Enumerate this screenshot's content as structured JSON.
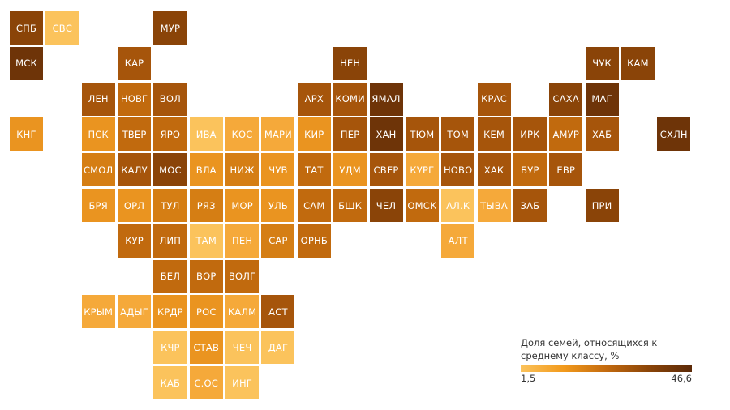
{
  "palette": {
    "1": "#FBC35C",
    "2": "#F5A93A",
    "3": "#EA9420",
    "4": "#D57E14",
    "5": "#C16A0E",
    "6": "#A6550B",
    "7": "#8A4408",
    "8": "#6E3408"
  },
  "legend": {
    "title": "Доля семей, относящихся к среднему классу, %",
    "min_label": "1,5",
    "max_label": "46,6"
  },
  "regions": [
    {
      "label": "СПБ",
      "col": 0,
      "row": 0,
      "tone": 7
    },
    {
      "label": "СВС",
      "col": 1,
      "row": 0,
      "tone": 1
    },
    {
      "label": "МУР",
      "col": 4,
      "row": 0,
      "tone": 7
    },
    {
      "label": "МСК",
      "col": 0,
      "row": 1,
      "tone": 8
    },
    {
      "label": "КАР",
      "col": 3,
      "row": 1,
      "tone": 6
    },
    {
      "label": "НЕН",
      "col": 9,
      "row": 1,
      "tone": 7
    },
    {
      "label": "ЧУК",
      "col": 16,
      "row": 1,
      "tone": 7
    },
    {
      "label": "КАМ",
      "col": 17,
      "row": 1,
      "tone": 7
    },
    {
      "label": "ЛЕН",
      "col": 2,
      "row": 2,
      "tone": 6
    },
    {
      "label": "НОВГ",
      "col": 3,
      "row": 2,
      "tone": 5
    },
    {
      "label": "ВОЛ",
      "col": 4,
      "row": 2,
      "tone": 6
    },
    {
      "label": "АРХ",
      "col": 8,
      "row": 2,
      "tone": 6
    },
    {
      "label": "КОМИ",
      "col": 9,
      "row": 2,
      "tone": 6
    },
    {
      "label": "ЯМАЛ",
      "col": 10,
      "row": 2,
      "tone": 8
    },
    {
      "label": "КРАС",
      "col": 13,
      "row": 2,
      "tone": 6
    },
    {
      "label": "САХА",
      "col": 15,
      "row": 2,
      "tone": 7
    },
    {
      "label": "МАГ",
      "col": 16,
      "row": 2,
      "tone": 8
    },
    {
      "label": "КНГ",
      "col": 0,
      "row": 3,
      "tone": 3
    },
    {
      "label": "ПСК",
      "col": 2,
      "row": 3,
      "tone": 3
    },
    {
      "label": "ТВЕР",
      "col": 3,
      "row": 3,
      "tone": 5
    },
    {
      "label": "ЯРО",
      "col": 4,
      "row": 3,
      "tone": 5
    },
    {
      "label": "ИВА",
      "col": 5,
      "row": 3,
      "tone": 1
    },
    {
      "label": "КОС",
      "col": 6,
      "row": 3,
      "tone": 2
    },
    {
      "label": "МАРИ",
      "col": 7,
      "row": 3,
      "tone": 2
    },
    {
      "label": "КИР",
      "col": 8,
      "row": 3,
      "tone": 3
    },
    {
      "label": "ПЕР",
      "col": 9,
      "row": 3,
      "tone": 6
    },
    {
      "label": "ХАН",
      "col": 10,
      "row": 3,
      "tone": 8
    },
    {
      "label": "ТЮМ",
      "col": 11,
      "row": 3,
      "tone": 6
    },
    {
      "label": "ТОМ",
      "col": 12,
      "row": 3,
      "tone": 6
    },
    {
      "label": "КЕМ",
      "col": 13,
      "row": 3,
      "tone": 6
    },
    {
      "label": "ИРК",
      "col": 14,
      "row": 3,
      "tone": 6
    },
    {
      "label": "АМУР",
      "col": 15,
      "row": 3,
      "tone": 5
    },
    {
      "label": "ХАБ",
      "col": 16,
      "row": 3,
      "tone": 6
    },
    {
      "label": "СХЛН",
      "col": 18,
      "row": 3,
      "tone": 8
    },
    {
      "label": "СМОЛ",
      "col": 2,
      "row": 4,
      "tone": 4
    },
    {
      "label": "КАЛУ",
      "col": 3,
      "row": 4,
      "tone": 6
    },
    {
      "label": "МОС",
      "col": 4,
      "row": 4,
      "tone": 7
    },
    {
      "label": "ВЛА",
      "col": 5,
      "row": 4,
      "tone": 3
    },
    {
      "label": "НИЖ",
      "col": 6,
      "row": 4,
      "tone": 4
    },
    {
      "label": "ЧУВ",
      "col": 7,
      "row": 4,
      "tone": 3
    },
    {
      "label": "ТАТ",
      "col": 8,
      "row": 4,
      "tone": 5
    },
    {
      "label": "УДМ",
      "col": 9,
      "row": 4,
      "tone": 3
    },
    {
      "label": "СВЕР",
      "col": 10,
      "row": 4,
      "tone": 6
    },
    {
      "label": "КУРГ",
      "col": 11,
      "row": 4,
      "tone": 2
    },
    {
      "label": "НОВО",
      "col": 12,
      "row": 4,
      "tone": 6
    },
    {
      "label": "ХАК",
      "col": 13,
      "row": 4,
      "tone": 6
    },
    {
      "label": "БУР",
      "col": 14,
      "row": 4,
      "tone": 5
    },
    {
      "label": "ЕВР",
      "col": 15,
      "row": 4,
      "tone": 6
    },
    {
      "label": "БРЯ",
      "col": 2,
      "row": 5,
      "tone": 3
    },
    {
      "label": "ОРЛ",
      "col": 3,
      "row": 5,
      "tone": 3
    },
    {
      "label": "ТУЛ",
      "col": 4,
      "row": 5,
      "tone": 4
    },
    {
      "label": "РЯЗ",
      "col": 5,
      "row": 5,
      "tone": 4
    },
    {
      "label": "МОР",
      "col": 6,
      "row": 5,
      "tone": 3
    },
    {
      "label": "УЛЬ",
      "col": 7,
      "row": 5,
      "tone": 3
    },
    {
      "label": "САМ",
      "col": 8,
      "row": 5,
      "tone": 5
    },
    {
      "label": "БШК",
      "col": 9,
      "row": 5,
      "tone": 5
    },
    {
      "label": "ЧЕЛ",
      "col": 10,
      "row": 5,
      "tone": 7
    },
    {
      "label": "ОМСК",
      "col": 11,
      "row": 5,
      "tone": 5
    },
    {
      "label": "АЛ.К",
      "col": 12,
      "row": 5,
      "tone": 1
    },
    {
      "label": "ТЫВА",
      "col": 13,
      "row": 5,
      "tone": 2
    },
    {
      "label": "ЗАБ",
      "col": 14,
      "row": 5,
      "tone": 6
    },
    {
      "label": "ПРИ",
      "col": 16,
      "row": 5,
      "tone": 7
    },
    {
      "label": "КУР",
      "col": 3,
      "row": 6,
      "tone": 5
    },
    {
      "label": "ЛИП",
      "col": 4,
      "row": 6,
      "tone": 5
    },
    {
      "label": "ТАМ",
      "col": 5,
      "row": 6,
      "tone": 1
    },
    {
      "label": "ПЕН",
      "col": 6,
      "row": 6,
      "tone": 2
    },
    {
      "label": "САР",
      "col": 7,
      "row": 6,
      "tone": 4
    },
    {
      "label": "ОРНБ",
      "col": 8,
      "row": 6,
      "tone": 5
    },
    {
      "label": "АЛТ",
      "col": 12,
      "row": 6,
      "tone": 2
    },
    {
      "label": "БЕЛ",
      "col": 4,
      "row": 7,
      "tone": 5
    },
    {
      "label": "ВОР",
      "col": 5,
      "row": 7,
      "tone": 5
    },
    {
      "label": "ВОЛГ",
      "col": 6,
      "row": 7,
      "tone": 5
    },
    {
      "label": "КРЫМ",
      "col": 2,
      "row": 8,
      "tone": 2
    },
    {
      "label": "АДЫГ",
      "col": 3,
      "row": 8,
      "tone": 2
    },
    {
      "label": "КРДР",
      "col": 4,
      "row": 8,
      "tone": 3
    },
    {
      "label": "РОС",
      "col": 5,
      "row": 8,
      "tone": 3
    },
    {
      "label": "КАЛМ",
      "col": 6,
      "row": 8,
      "tone": 2
    },
    {
      "label": "АСТ",
      "col": 7,
      "row": 8,
      "tone": 6
    },
    {
      "label": "КЧР",
      "col": 4,
      "row": 9,
      "tone": 1
    },
    {
      "label": "СТАВ",
      "col": 5,
      "row": 9,
      "tone": 3
    },
    {
      "label": "ЧЕЧ",
      "col": 6,
      "row": 9,
      "tone": 1
    },
    {
      "label": "ДАГ",
      "col": 7,
      "row": 9,
      "tone": 1
    },
    {
      "label": "КАБ",
      "col": 4,
      "row": 10,
      "tone": 1
    },
    {
      "label": "С.ОС",
      "col": 5,
      "row": 10,
      "tone": 2
    },
    {
      "label": "ИНГ",
      "col": 6,
      "row": 10,
      "tone": 1
    }
  ]
}
